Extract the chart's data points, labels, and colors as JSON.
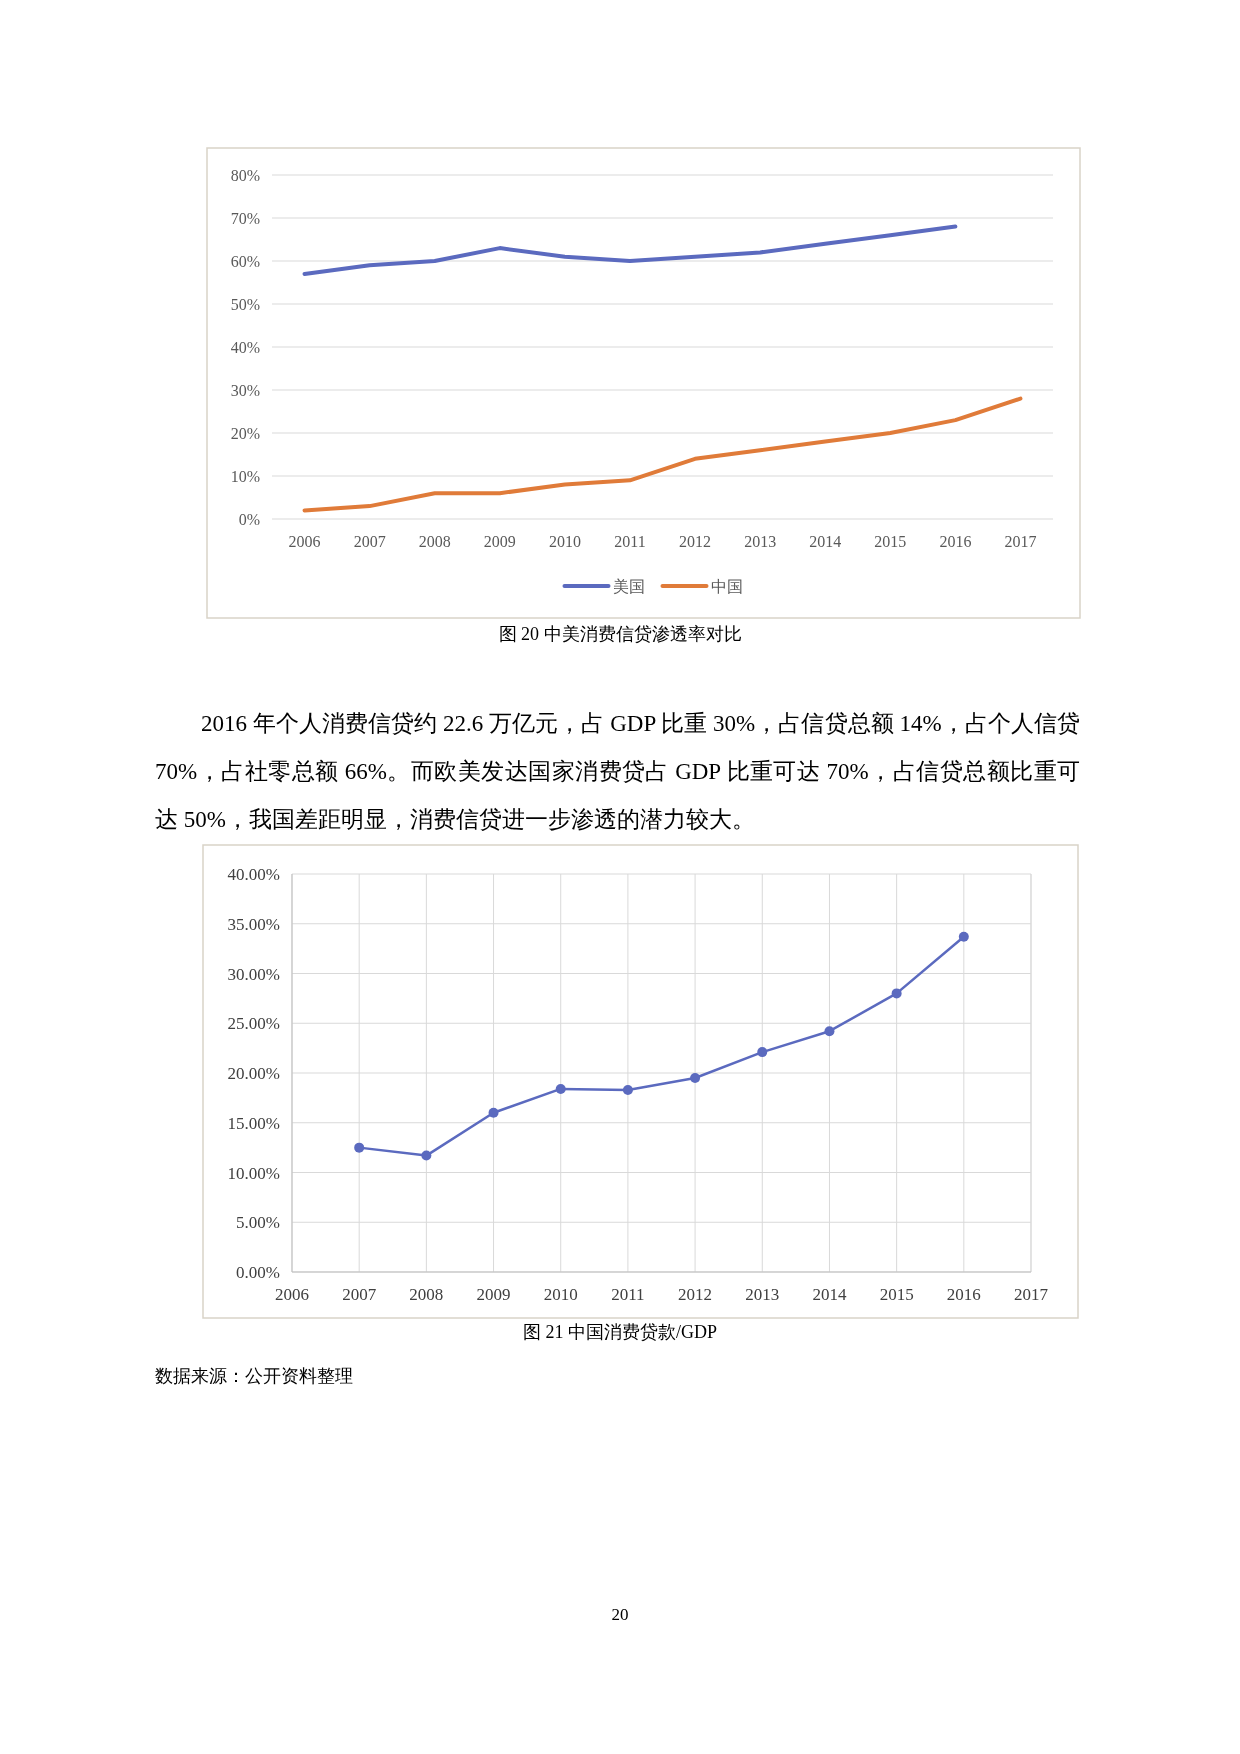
{
  "chart_data": [
    {
      "type": "line",
      "title": "图 20 中美消费信贷渗透率对比",
      "categories": [
        "2006",
        "2007",
        "2008",
        "2009",
        "2010",
        "2011",
        "2012",
        "2013",
        "2014",
        "2015",
        "2016",
        "2017"
      ],
      "series": [
        {
          "name": "美国",
          "color": "#5b6abf",
          "values": [
            57,
            59,
            60,
            63,
            61,
            60,
            61,
            62,
            64,
            66,
            68,
            null
          ]
        },
        {
          "name": "中国",
          "color": "#e07b39",
          "values": [
            2,
            3,
            6,
            6,
            8,
            9,
            14,
            16,
            18,
            20,
            23,
            28
          ]
        }
      ],
      "ylim": [
        0,
        80
      ],
      "yticks": [
        {
          "value": 0,
          "label": "0%"
        },
        {
          "value": 10,
          "label": "10%"
        },
        {
          "value": 20,
          "label": "20%"
        },
        {
          "value": 30,
          "label": "30%"
        },
        {
          "value": 40,
          "label": "40%"
        },
        {
          "value": 50,
          "label": "50%"
        },
        {
          "value": 60,
          "label": "60%"
        },
        {
          "value": 70,
          "label": "70%"
        },
        {
          "value": 80,
          "label": "80%"
        }
      ],
      "grid": "y",
      "legend": "bottom",
      "annotations": [
        "2016 年个人消费信贷约 22.6 万亿元，占 GDP 比重 30%，占信贷总额 14%，占个人信贷 70%，占社零总额 66%。而欧美发达国家消费贷占 GDP 比重可达 70%，占信贷总额比重可达 50%，我国差距明显，消费信贷进一步渗透的潜力较大。"
      ]
    },
    {
      "type": "line",
      "title": "图 21 中国消费贷款/GDP",
      "x": [
        2007,
        2008,
        2009,
        2010,
        2011,
        2012,
        2013,
        2014,
        2015,
        2016
      ],
      "series": [
        {
          "color": "#5b6abf",
          "values": [
            12.5,
            11.7,
            16.0,
            18.4,
            18.3,
            19.5,
            22.1,
            24.2,
            28.0,
            33.7
          ]
        }
      ],
      "xlim": [
        2006,
        2017
      ],
      "xticks": [
        2006,
        2007,
        2008,
        2009,
        2010,
        2011,
        2012,
        2013,
        2014,
        2015,
        2016,
        2017
      ],
      "ylim": [
        0,
        40
      ],
      "yticks": [
        {
          "value": 0,
          "label": "0.00%"
        },
        {
          "value": 5,
          "label": "5.00%"
        },
        {
          "value": 10,
          "label": "10.00%"
        },
        {
          "value": 15,
          "label": "15.00%"
        },
        {
          "value": 20,
          "label": "20.00%"
        },
        {
          "value": 25,
          "label": "25.00%"
        },
        {
          "value": 30,
          "label": "30.00%"
        },
        {
          "value": 35,
          "label": "35.00%"
        },
        {
          "value": 40,
          "label": "40.00%"
        }
      ],
      "grid": true,
      "marker": "circle",
      "annotations": [
        "数据来源：公开资料整理",
        "20"
      ]
    }
  ]
}
